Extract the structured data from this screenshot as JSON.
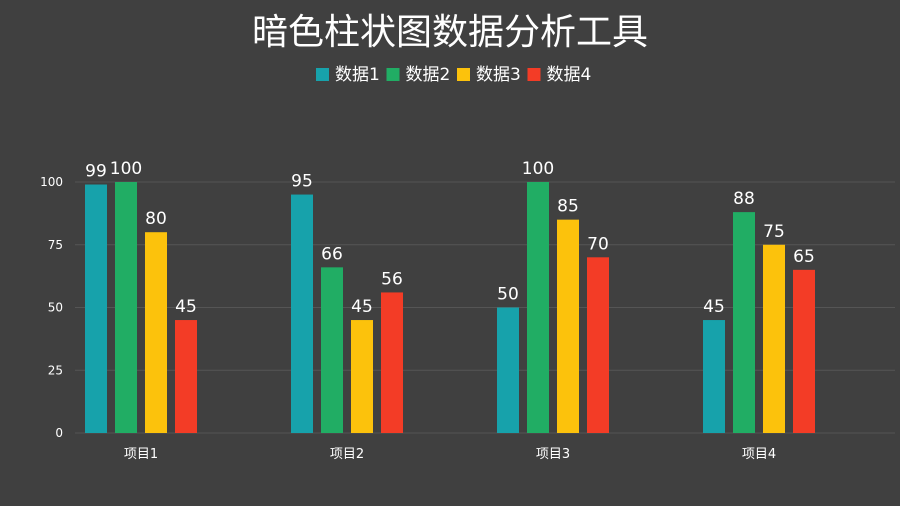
{
  "chart_data": {
    "type": "bar",
    "title": "暗色柱状图数据分析工具",
    "categories": [
      "项目1",
      "项目2",
      "项目3",
      "项目4"
    ],
    "series": [
      {
        "name": "数据1",
        "color": "#17a2ab",
        "values": [
          99,
          95,
          50,
          45
        ]
      },
      {
        "name": "数据2",
        "color": "#21ad64",
        "values": [
          100,
          66,
          100,
          88
        ]
      },
      {
        "name": "数据3",
        "color": "#fcc20c",
        "values": [
          80,
          45,
          85,
          75
        ]
      },
      {
        "name": "数据4",
        "color": "#f33c26",
        "values": [
          45,
          56,
          70,
          65
        ]
      }
    ],
    "ylim": [
      0,
      100
    ],
    "yticks": [
      0,
      25,
      50,
      75,
      100
    ],
    "xlabel": "",
    "ylabel": "",
    "grid": true,
    "legend_position": "top-center",
    "data_labels": true
  },
  "colors": {
    "background": "#404040",
    "text": "#ffffff",
    "axis_text": "#ffffff",
    "grid": "#555555"
  }
}
